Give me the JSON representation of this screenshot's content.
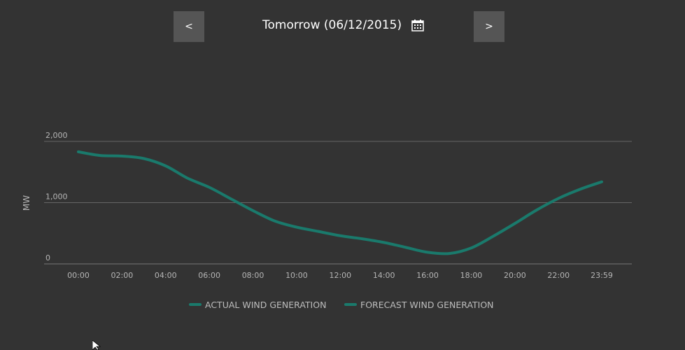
{
  "header": {
    "prev_label": "<",
    "next_label": ">",
    "date_label": "Tomorrow (06/12/2015)",
    "calendar_icon": "calendar-icon"
  },
  "chart_data": {
    "type": "line",
    "ylabel": "MW",
    "yticks": [
      "0",
      "1,000",
      "2,000"
    ],
    "ylim": [
      0,
      2000
    ],
    "xticks": [
      "00:00",
      "02:00",
      "04:00",
      "06:00",
      "08:00",
      "10:00",
      "12:00",
      "14:00",
      "16:00",
      "18:00",
      "20:00",
      "22:00",
      "23:59"
    ],
    "grid": true,
    "legend_position": "bottom",
    "series": [
      {
        "name": "ACTUAL WIND GENERATION",
        "color": "#1a7a6c",
        "values": []
      },
      {
        "name": "FORECAST WIND GENERATION",
        "color": "#1a7a6c",
        "hours": [
          0,
          1,
          2,
          3,
          4,
          5,
          6,
          7,
          8,
          9,
          10,
          11,
          12,
          13,
          14,
          15,
          16,
          17,
          18,
          19,
          20,
          21,
          22,
          23,
          23.98
        ],
        "values": [
          1830,
          1770,
          1760,
          1720,
          1600,
          1400,
          1250,
          1060,
          870,
          700,
          600,
          530,
          460,
          410,
          350,
          270,
          190,
          170,
          260,
          450,
          660,
          880,
          1070,
          1220,
          1340
        ]
      }
    ]
  }
}
